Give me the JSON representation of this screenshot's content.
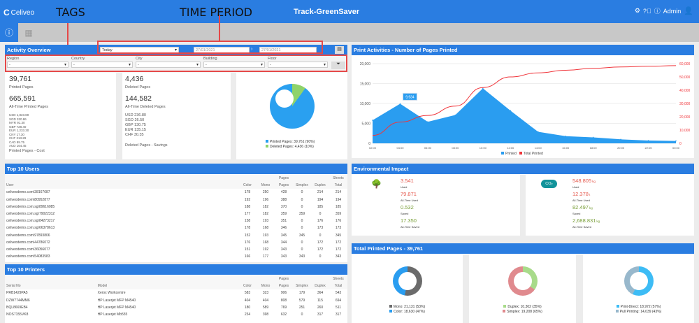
{
  "header": {
    "brand": "Celiveo",
    "app_title": "Track-GreenSaver",
    "user": "Admin"
  },
  "annotations": {
    "tags": "TAGS",
    "time_period": "TIME PERIOD"
  },
  "activity": {
    "title": "Activity Overview",
    "period": "Today",
    "date_from": "27/01/2021",
    "date_to": "27/01/2021",
    "filters": [
      {
        "label": "Region",
        "value": "-"
      },
      {
        "label": "Country",
        "value": "-"
      },
      {
        "label": "City",
        "value": "-"
      },
      {
        "label": "Building",
        "value": "-"
      },
      {
        "label": "Floor",
        "value": "-"
      }
    ],
    "printed": {
      "value": "39,761",
      "label": "Printed Pages",
      "alltime": "665,591",
      "alltime_label": "All-Time Printed Pages",
      "costs": [
        "USD 1,823.80",
        "SGD 320.86",
        "MYR 91.30",
        "GBP 728.40",
        "EUR 1,233.30",
        "CNY 17.30",
        "CHF 213.29",
        "CAD 89.75",
        "AUD 164.45"
      ],
      "cost_label": "Printed Pages - Cost"
    },
    "deleted": {
      "value": "4,436",
      "label": "Deleted Pages",
      "alltime": "144,582",
      "alltime_label": "All-Time Deleted Pages",
      "savings": [
        "USD 236.80",
        "SGD 26.50",
        "GBP 130.75",
        "EUR 135.15",
        "CHF 30.35"
      ],
      "savings_label": "Deleted Pages - Savings"
    },
    "donut": {
      "legend": [
        "Printed Pages: 39,761 (90%)",
        "Deleted Pages: 4,436 (10%)"
      ],
      "percents": [
        90,
        10
      ],
      "colors": [
        "#2aa0f0",
        "#8fd36b"
      ]
    }
  },
  "users": {
    "title": "Top 10 Users",
    "group_pages": "Pages",
    "group_sheets": "Sheets",
    "columns": [
      "User",
      "Color",
      "Mono",
      "Pages",
      "Simplex",
      "Duplex",
      "Total"
    ],
    "rows": [
      [
        "celiveodemo.com\\38167687",
        "178",
        "250",
        "428",
        "0",
        "214",
        "214"
      ],
      [
        "celiveodemo.com\\80952877",
        "192",
        "196",
        "388",
        "0",
        "194",
        "194"
      ],
      [
        "celiveodemo.com.sg\\89616085",
        "188",
        "182",
        "370",
        "0",
        "185",
        "185"
      ],
      [
        "celiveodemo.com.sg\\79022312",
        "177",
        "182",
        "359",
        "359",
        "0",
        "359"
      ],
      [
        "celiveodemo.com.sg\\84273217",
        "158",
        "193",
        "351",
        "0",
        "176",
        "176"
      ],
      [
        "celiveodemo.com.sg\\66378613",
        "178",
        "168",
        "346",
        "0",
        "173",
        "173"
      ],
      [
        "celiveodemo.com\\97893806",
        "152",
        "193",
        "345",
        "345",
        "0",
        "345"
      ],
      [
        "celiveodemo.com\\44786072",
        "176",
        "168",
        "344",
        "0",
        "172",
        "172"
      ],
      [
        "celiveodemo.com\\36056077",
        "151",
        "192",
        "343",
        "0",
        "172",
        "172"
      ],
      [
        "celiveodemo.com\\54083583",
        "166",
        "177",
        "343",
        "343",
        "0",
        "343"
      ]
    ]
  },
  "printers": {
    "title": "Top 10 Printers",
    "group_pages": "Pages",
    "group_sheets": "Sheets",
    "columns": [
      "Serial No",
      "Model",
      "Color",
      "Mono",
      "Pages",
      "Simplex",
      "Duplex",
      "Total"
    ],
    "rows": [
      [
        "PRB1429PA5",
        "Xerox Workcentre",
        "583",
        "323",
        "906",
        "179",
        "364",
        "543"
      ],
      [
        "DZW7744MM6",
        "HP Laserjet MFP M4540",
        "404",
        "404",
        "808",
        "579",
        "115",
        "694"
      ],
      [
        "BQL8669EB4",
        "HP Laserjet MFP M4540",
        "180",
        "589",
        "769",
        "251",
        "260",
        "511"
      ],
      [
        "NOS7155VK8",
        "HP Laserjet Mb555",
        "234",
        "398",
        "632",
        "0",
        "317",
        "317"
      ]
    ]
  },
  "chart_data": {
    "type": "area",
    "title": "Print Activities - Number of Pages Printed",
    "x": [
      "02:00",
      "04:00",
      "06:00",
      "08:00",
      "10:00",
      "12:00",
      "14:00",
      "16:00",
      "18:00",
      "20:00",
      "22:00",
      "00:00"
    ],
    "series": [
      {
        "name": "Printed",
        "axis": "left",
        "color": "#2a9df0",
        "values": [
          5800,
          9934,
          5400,
          7100,
          13800,
          8200,
          2900,
          1800,
          1500,
          1000,
          700,
          600
        ]
      },
      {
        "name": "Total Printed",
        "axis": "right",
        "color": "#f0353b",
        "values": [
          6000,
          16000,
          21000,
          28000,
          42000,
          50000,
          53000,
          55000,
          56500,
          57500,
          58000,
          58500
        ]
      }
    ],
    "yleft": {
      "ticks": [
        "0",
        "5,000",
        "10,000",
        "15,000",
        "20,000"
      ],
      "range": [
        0,
        20000
      ]
    },
    "yright": {
      "ticks": [
        "0",
        "10,000",
        "20,000",
        "30,000",
        "40,000",
        "50,000",
        "60,000"
      ],
      "range": [
        0,
        60000
      ]
    },
    "tooltip": "9,934",
    "legend": "bottom"
  },
  "env": {
    "title": "Environmental Impact",
    "trees": [
      {
        "v": "3.541",
        "u": "",
        "l": "Used",
        "c": "red"
      },
      {
        "v": "79.871",
        "u": "",
        "l": "All-Time Used",
        "c": "red"
      },
      {
        "v": "0.532",
        "u": "",
        "l": "Saved",
        "c": "grn"
      },
      {
        "v": "17.350",
        "u": "",
        "l": "All-Time Saved",
        "c": "grn"
      }
    ],
    "co2": {
      "badge": "CO₂",
      "items": [
        {
          "v": "548.805",
          "u": "kg",
          "l": "Used",
          "c": "red"
        },
        {
          "v": "12.378",
          "u": "t",
          "l": "All-Time Used",
          "c": "red"
        },
        {
          "v": "82.497",
          "u": "kg",
          "l": "Saved",
          "c": "grn"
        },
        {
          "v": "2,688.831",
          "u": "kg",
          "l": "All-Time Saved",
          "c": "grn"
        }
      ]
    }
  },
  "totals": {
    "title": "Total Printed Pages - 39,761",
    "donuts": [
      {
        "legend": [
          "Mono: 21,131 (53%)",
          "Color: 18,630 (47%)"
        ],
        "percents": [
          53,
          47
        ],
        "colors": [
          "#6b6b6b",
          "#2a9df0"
        ]
      },
      {
        "legend": [
          "Duplex: 10,302 (35%)",
          "Simplex: 19,208 (65%)"
        ],
        "percents": [
          35,
          65
        ],
        "colors": [
          "#a8db8a",
          "#e08a8e"
        ]
      },
      {
        "legend": [
          "Print-Direct: 18,972 (57%)",
          "Pull Printing: 14,039 (43%)"
        ],
        "percents": [
          57,
          43
        ],
        "colors": [
          "#3dbcf5",
          "#98b8cc"
        ]
      }
    ]
  }
}
